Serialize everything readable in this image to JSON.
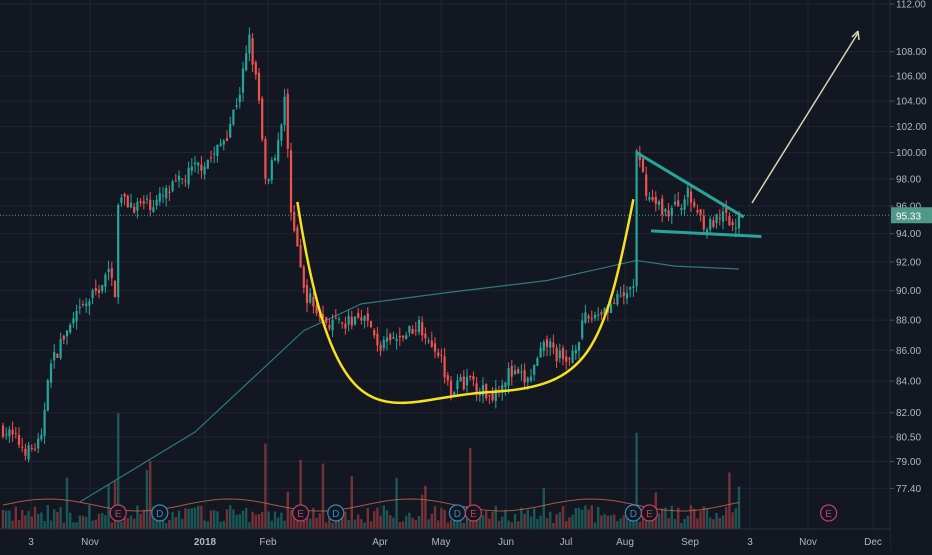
{
  "chart_data": {
    "type": "candlestick",
    "title": "",
    "xlabel": "",
    "ylabel": "",
    "y_scale": "log",
    "ylim": [
      76.6,
      112.0
    ],
    "grid": true,
    "x_tick_labels": [
      "3",
      "Nov",
      "2018",
      "Feb",
      "Apr",
      "May",
      "Jun",
      "Jul",
      "Aug",
      "Sep",
      "3",
      "Nov",
      "Dec"
    ],
    "y_tick_labels": [
      "112.00",
      "108.00",
      "106.00",
      "104.00",
      "102.00",
      "100.00",
      "98.00",
      "96.00",
      "94.00",
      "92.00",
      "90.00",
      "88.00",
      "86.00",
      "84.00",
      "82.00",
      "80.50",
      "79.00",
      "77.40"
    ],
    "y_ticks": [
      112,
      108,
      106,
      104,
      102,
      100,
      98,
      96,
      94,
      92,
      90,
      88,
      86,
      84,
      82,
      80.5,
      79,
      77.4
    ],
    "last_price": 95.33,
    "last_price_label": "95.33",
    "price_path": [
      {
        "bar": 0,
        "close": 81.0
      },
      {
        "bar": 8,
        "close": 79.6
      },
      {
        "bar": 12,
        "close": 80.2
      },
      {
        "bar": 14,
        "close": 84.5
      },
      {
        "bar": 18,
        "close": 86.5
      },
      {
        "bar": 24,
        "close": 88.5
      },
      {
        "bar": 30,
        "close": 90.2
      },
      {
        "bar": 33,
        "close": 91.2
      },
      {
        "bar": 35,
        "close": 90.0
      },
      {
        "bar": 36,
        "close": 96.5
      },
      {
        "bar": 42,
        "close": 96.0
      },
      {
        "bar": 48,
        "close": 96.3
      },
      {
        "bar": 54,
        "close": 97.5
      },
      {
        "bar": 60,
        "close": 98.8
      },
      {
        "bar": 66,
        "close": 99.8
      },
      {
        "bar": 70,
        "close": 101.5
      },
      {
        "bar": 74,
        "close": 104.8
      },
      {
        "bar": 77,
        "close": 109.0
      },
      {
        "bar": 80,
        "close": 104.0
      },
      {
        "bar": 82,
        "close": 97.5
      },
      {
        "bar": 86,
        "close": 101.0
      },
      {
        "bar": 88,
        "close": 104.0
      },
      {
        "bar": 90,
        "close": 96.0
      },
      {
        "bar": 94,
        "close": 90.0
      },
      {
        "bar": 100,
        "close": 88.0
      },
      {
        "bar": 106,
        "close": 87.5
      },
      {
        "bar": 112,
        "close": 88.5
      },
      {
        "bar": 118,
        "close": 86.2
      },
      {
        "bar": 124,
        "close": 86.8
      },
      {
        "bar": 130,
        "close": 87.8
      },
      {
        "bar": 136,
        "close": 86.0
      },
      {
        "bar": 140,
        "close": 83.5
      },
      {
        "bar": 146,
        "close": 84.2
      },
      {
        "bar": 152,
        "close": 83.0
      },
      {
        "bar": 158,
        "close": 84.5
      },
      {
        "bar": 164,
        "close": 84.0
      },
      {
        "bar": 170,
        "close": 86.5
      },
      {
        "bar": 176,
        "close": 85.0
      },
      {
        "bar": 182,
        "close": 88.0
      },
      {
        "bar": 188,
        "close": 88.8
      },
      {
        "bar": 194,
        "close": 89.5
      },
      {
        "bar": 197,
        "close": 90.5
      },
      {
        "bar": 198,
        "close": 99.8
      },
      {
        "bar": 202,
        "close": 96.5
      },
      {
        "bar": 208,
        "close": 95.5
      },
      {
        "bar": 214,
        "close": 96.8
      },
      {
        "bar": 220,
        "close": 94.5
      },
      {
        "bar": 226,
        "close": 95.2
      },
      {
        "bar": 228,
        "close": 94.2
      },
      {
        "bar": 230,
        "close": 95.33
      }
    ],
    "moving_average": [
      {
        "bar": 24,
        "value": 76.6
      },
      {
        "bar": 60,
        "value": 80.8
      },
      {
        "bar": 94,
        "value": 87.3
      },
      {
        "bar": 112,
        "value": 89.1
      },
      {
        "bar": 140,
        "value": 89.9
      },
      {
        "bar": 170,
        "value": 90.7
      },
      {
        "bar": 198,
        "value": 92.1
      },
      {
        "bar": 210,
        "value": 91.7
      },
      {
        "bar": 230,
        "value": 91.5
      }
    ],
    "events": [
      {
        "label": "E",
        "kind": "earnings",
        "bar": 36
      },
      {
        "label": "D",
        "kind": "dividend",
        "bar": 49
      },
      {
        "label": "E",
        "kind": "earnings",
        "bar": 93
      },
      {
        "label": "D",
        "kind": "dividend",
        "bar": 104
      },
      {
        "label": "D",
        "kind": "dividend",
        "bar": 142
      },
      {
        "label": "E",
        "kind": "earnings",
        "bar": 147
      },
      {
        "label": "D",
        "kind": "dividend",
        "bar": 197
      },
      {
        "label": "E",
        "kind": "earnings",
        "bar": 202
      },
      {
        "label": "E",
        "kind": "earnings",
        "bar": 258
      }
    ],
    "annotations": [
      "cup (yellow curve)",
      "handle (descending wedge, teal lines)",
      "projected up-move arrow"
    ]
  },
  "colors": {
    "background": "#131722",
    "grid": "#1f2433",
    "up": "#26a69a",
    "down": "#ef5350",
    "cup": "#f5e11f",
    "handle": "#26a69a",
    "moving_average": "#2e7a78",
    "arrow": "#d7d3b6",
    "price_line": "#4f9a87",
    "axis_text": "#b2b5be",
    "earnings": "#c2405e",
    "dividend": "#3c8ab8"
  }
}
